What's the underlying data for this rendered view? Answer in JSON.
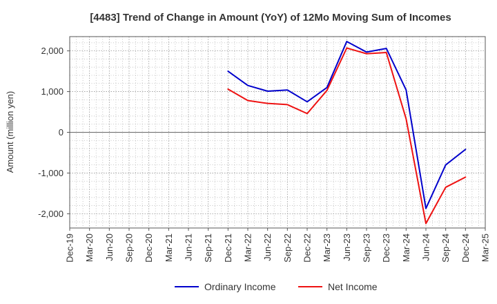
{
  "chart_data": {
    "type": "line",
    "title": "[4483]  Trend of Change in Amount (YoY) of 12Mo Moving Sum of Incomes",
    "xlabel": "",
    "ylabel": "Amount (million yen)",
    "x": [
      "Dec-19",
      "Mar-20",
      "Jun-20",
      "Sep-20",
      "Dec-20",
      "Mar-21",
      "Jun-21",
      "Sep-21",
      "Dec-21",
      "Mar-22",
      "Jun-22",
      "Sep-22",
      "Dec-22",
      "Mar-23",
      "Jun-23",
      "Sep-23",
      "Dec-23",
      "Mar-24",
      "Jun-24",
      "Sep-24",
      "Dec-24",
      "Mar-25"
    ],
    "ylim": [
      -2350,
      2350
    ],
    "yticks": [
      -2000,
      -1000,
      0,
      1000,
      2000
    ],
    "ytick_labels": [
      "-2,000",
      "-1,000",
      "0",
      "1,000",
      "2,000"
    ],
    "grid": true,
    "legend_position": "bottom-center",
    "series": [
      {
        "name": "Ordinary Income",
        "color": "#0000cc",
        "values": [
          null,
          null,
          null,
          null,
          null,
          null,
          null,
          null,
          1500,
          1150,
          1010,
          1040,
          750,
          1100,
          2230,
          1970,
          2060,
          1040,
          -1870,
          -800,
          -420,
          null
        ]
      },
      {
        "name": "Net Income",
        "color": "#ee1111",
        "values": [
          null,
          null,
          null,
          null,
          null,
          null,
          null,
          null,
          1060,
          780,
          710,
          680,
          460,
          1030,
          2070,
          1930,
          1960,
          330,
          -2240,
          -1350,
          -1100,
          null
        ]
      }
    ]
  }
}
